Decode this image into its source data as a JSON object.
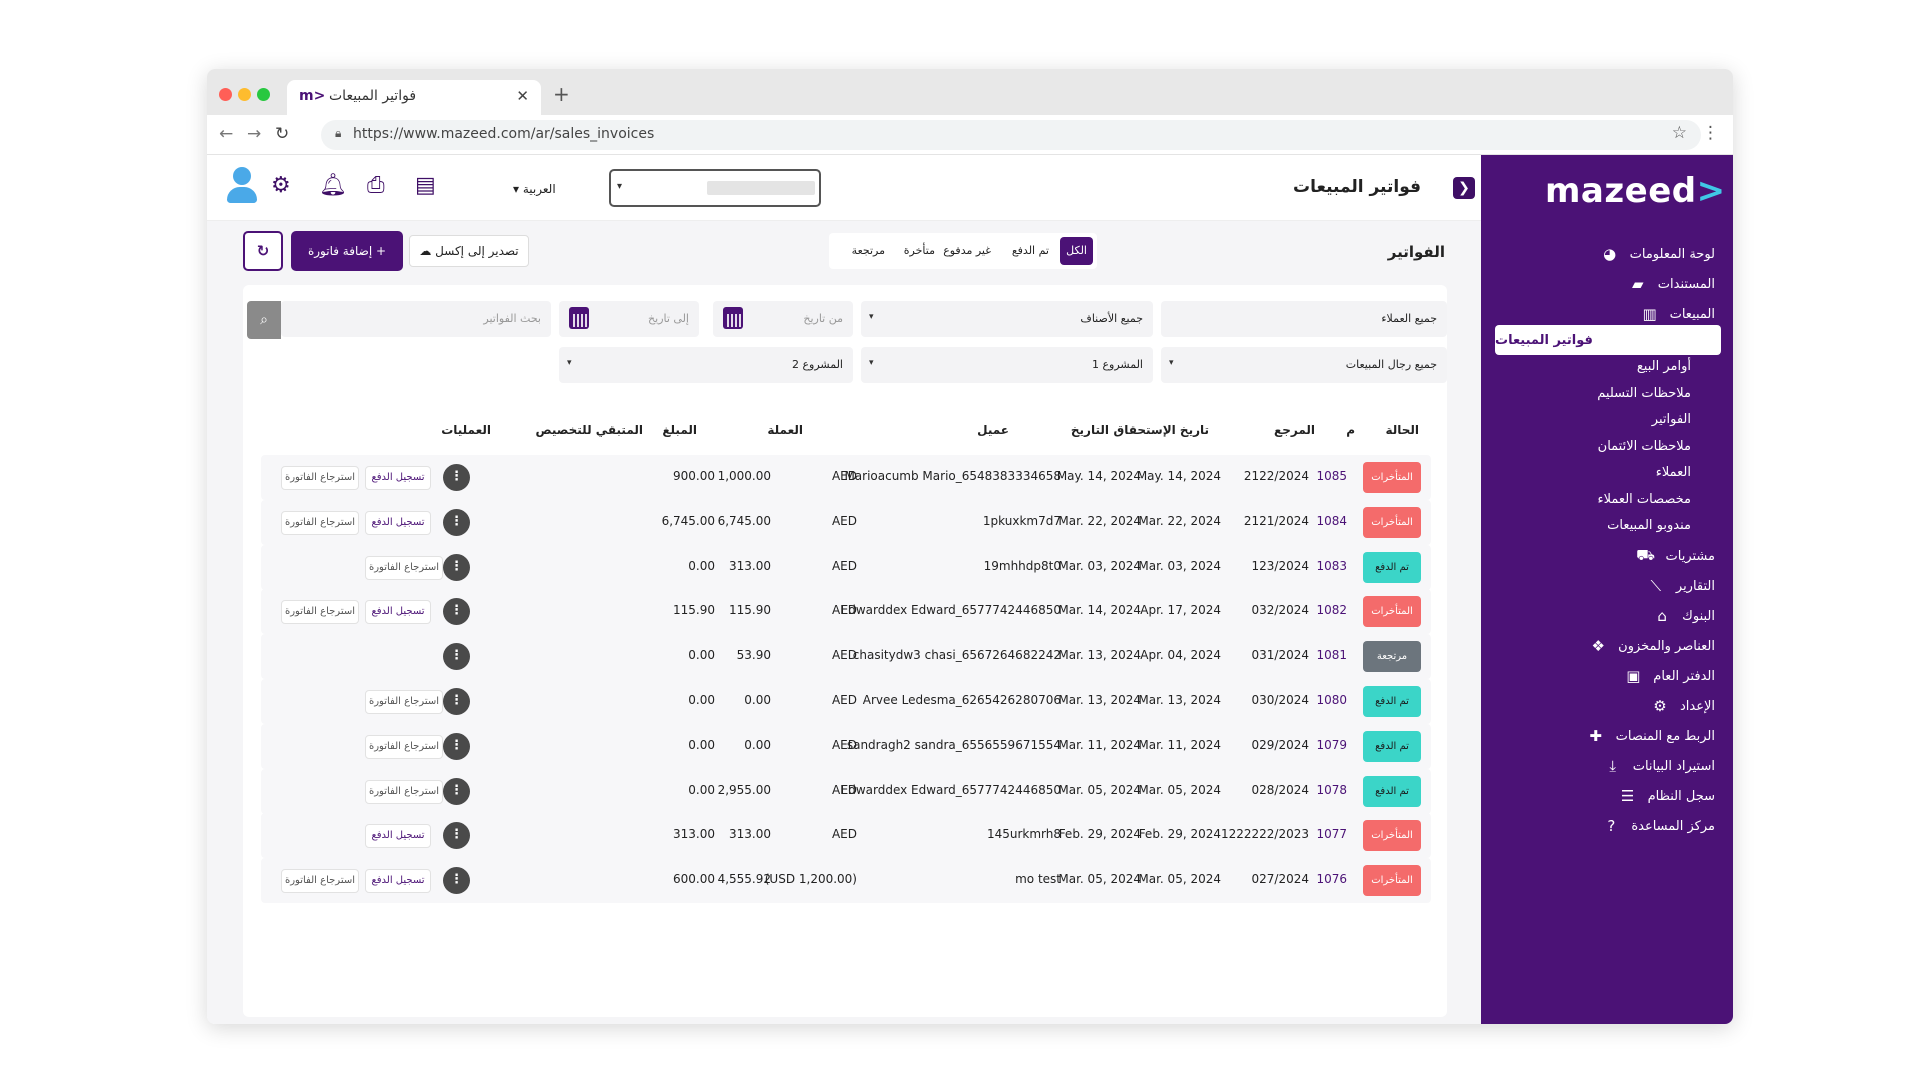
{
  "browser": {
    "tab_title": "فواتير المبيعات",
    "tab_logo": "m>",
    "url": "https://www.mazeed.com/ar/sales_invoices",
    "new_tab": "+",
    "close": "✕"
  },
  "sidebar": {
    "brand": "mazeed",
    "brand_arrow": ">",
    "items": [
      {
        "label": "لوحة المعلومات",
        "icon": "palette-icon",
        "glyph": "◕"
      },
      {
        "label": "المستندات",
        "icon": "folder-icon",
        "glyph": "▰"
      },
      {
        "label": "المبيعات",
        "icon": "bar-chart-icon",
        "glyph": "▥"
      },
      {
        "label": "فواتير المبيعات",
        "sub": true,
        "active": true
      },
      {
        "label": "أوامر البيع",
        "sub": true
      },
      {
        "label": "ملاحظات التسليم",
        "sub": true
      },
      {
        "label": "الفواتير",
        "sub": true
      },
      {
        "label": "ملاحظات الائتمان",
        "sub": true
      },
      {
        "label": "العملاء",
        "sub": true
      },
      {
        "label": "مخصصات العملاء",
        "sub": true
      },
      {
        "label": "مندوبو المبيعات",
        "sub": true
      },
      {
        "label": "مشتريات",
        "icon": "cart-icon",
        "glyph": "⛟"
      },
      {
        "label": "التقارير",
        "icon": "line-chart-icon",
        "glyph": "⟋"
      },
      {
        "label": "البنوك",
        "icon": "bank-icon",
        "glyph": "⌂"
      },
      {
        "label": "العناصر والمخزون",
        "icon": "boxes-icon",
        "glyph": "❖"
      },
      {
        "label": "الدفتر العام",
        "icon": "briefcase-icon",
        "glyph": "▣"
      },
      {
        "label": "الإعداد",
        "icon": "gear-icon",
        "glyph": "⚙"
      },
      {
        "label": "الربط مع المنصات",
        "icon": "puzzle-icon",
        "glyph": "✚"
      },
      {
        "label": "استيراد البيانات",
        "icon": "download-icon",
        "glyph": "⤓"
      },
      {
        "label": "سجل النظام",
        "icon": "database-icon",
        "glyph": "☰"
      },
      {
        "label": "مركز المساعدة",
        "icon": "question-icon",
        "glyph": "?"
      }
    ]
  },
  "header": {
    "title": "فواتير المبيعات",
    "collapse": "❯",
    "language": "العربية",
    "caret": "▾"
  },
  "main": {
    "section_title": "الفواتير",
    "filters": [
      "الكل",
      "تم الدفع",
      "غير مدفوع",
      "متأخرة",
      "مرتجعة"
    ],
    "export_label": "تصدير إلى إكسل ☁",
    "add_label": "+ إضافة فاتورة",
    "refresh": "↻",
    "search_placeholder": "بحث الفواتير",
    "from_date": "من تاريخ",
    "to_date": "إلى تاريخ",
    "customers_select": "جميع العملاء",
    "categories_select": "جميع الأصناف",
    "salesmen_select": "جميع رجال المبيعات",
    "project1_select": "المشروع 1",
    "project2_select": "المشروع 2",
    "search_icon": "⌕"
  },
  "table": {
    "headers": {
      "status": "الحالة",
      "no": "م",
      "ref": "المرجع",
      "due": "تاريخ الإستحقاق",
      "date": "التاريخ",
      "customer": "عميل",
      "currency": "العملة",
      "amount": "المبلغ",
      "remaining": "المتبقي للتخصيص",
      "actions": "العمليات"
    },
    "action_labels": {
      "pay": "تسجيل الدفع",
      "refund": "استرجاع الفاتورة",
      "more": "⋮"
    },
    "status_colors": {
      "late": "#f46b6b",
      "paid": "#3bd5c8",
      "returned": "#6c757d"
    },
    "rows": [
      {
        "status": "المتأخرات",
        "kind": "late",
        "no": "1085",
        "ref": "2122/2024",
        "due": "May. 14, 2024",
        "date": "May. 14, 2024",
        "customer": "Marioacumb Mario_6548383334658",
        "currency": "AED",
        "amount": "1,000.00",
        "remaining": "900.00",
        "pay": true,
        "refund": true
      },
      {
        "status": "المتأخرات",
        "kind": "late",
        "no": "1084",
        "ref": "2121/2024",
        "due": "Mar. 22, 2024",
        "date": "Mar. 22, 2024",
        "customer": "1pkuxkm7d7",
        "currency": "AED",
        "amount": "6,745.00",
        "remaining": "6,745.00",
        "pay": true,
        "refund": true
      },
      {
        "status": "تم الدفع",
        "kind": "paid",
        "no": "1083",
        "ref": "123/2024",
        "due": "Mar. 03, 2024",
        "date": "Mar. 03, 2024",
        "customer": "19mhhdp8t0",
        "currency": "AED",
        "amount": "313.00",
        "remaining": "0.00",
        "pay": false,
        "refund": true
      },
      {
        "status": "المتأخرات",
        "kind": "late",
        "no": "1082",
        "ref": "032/2024",
        "due": "Apr. 17, 2024",
        "date": "Mar. 14, 2024",
        "customer": "Edwarddex Edward_6577742446850",
        "currency": "AED",
        "amount": "115.90",
        "remaining": "115.90",
        "pay": true,
        "refund": true
      },
      {
        "status": "مرتجعة",
        "kind": "ret",
        "no": "1081",
        "ref": "031/2024",
        "due": "Apr. 04, 2024",
        "date": "Mar. 13, 2024",
        "customer": "chasitydw3 chasi_6567264682242",
        "currency": "AED",
        "amount": "53.90",
        "remaining": "0.00",
        "pay": false,
        "refund": false
      },
      {
        "status": "تم الدفع",
        "kind": "paid",
        "no": "1080",
        "ref": "030/2024",
        "due": "Mar. 13, 2024",
        "date": "Mar. 13, 2024",
        "customer": "Arvee Ledesma_6265426280706",
        "currency": "AED",
        "amount": "0.00",
        "remaining": "0.00",
        "pay": false,
        "refund": true
      },
      {
        "status": "تم الدفع",
        "kind": "paid",
        "no": "1079",
        "ref": "029/2024",
        "due": "Mar. 11, 2024",
        "date": "Mar. 11, 2024",
        "customer": "sandragh2 sandra_6556559671554",
        "currency": "AED",
        "amount": "0.00",
        "remaining": "0.00",
        "pay": false,
        "refund": true
      },
      {
        "status": "تم الدفع",
        "kind": "paid",
        "no": "1078",
        "ref": "028/2024",
        "due": "Mar. 05, 2024",
        "date": "Mar. 05, 2024",
        "customer": "Edwarddex Edward_6577742446850",
        "currency": "AED",
        "amount": "2,955.00",
        "remaining": "0.00",
        "pay": false,
        "refund": true
      },
      {
        "status": "المتأخرات",
        "kind": "late",
        "no": "1077",
        "ref": "1222222/2023",
        "due": "Feb. 29, 2024",
        "date": "Feb. 29, 2024",
        "customer": "145urkmrh8",
        "currency": "AED",
        "amount": "313.00",
        "remaining": "313.00",
        "pay": true,
        "refund": false
      },
      {
        "status": "المتأخرات",
        "kind": "late",
        "no": "1076",
        "ref": "027/2024",
        "due": "Mar. 05, 2024",
        "date": "Mar. 05, 2024",
        "customer": "mo test",
        "currency": "(USD 1,200.00)",
        "amount": "4,555.92",
        "remaining": "600.00",
        "pay": true,
        "refund": true
      }
    ]
  }
}
